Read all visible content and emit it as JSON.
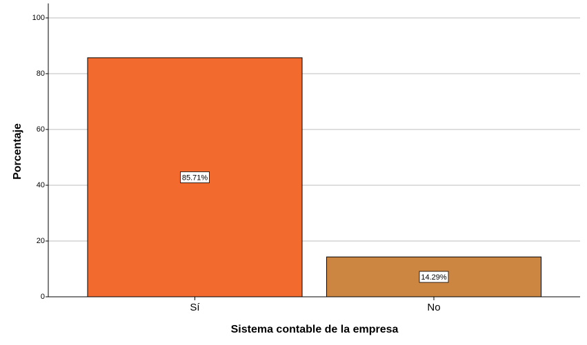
{
  "chart_data": {
    "type": "bar",
    "xlabel": "Sistema contable de la empresa",
    "ylabel": "Porcentaje",
    "categories": [
      "Sí",
      "No"
    ],
    "values": [
      85.71,
      14.29
    ],
    "value_labels": [
      "85.71%",
      "14.29%"
    ],
    "colors": [
      "#f26a2e",
      "#cd8641"
    ],
    "ylim": [
      0,
      100
    ],
    "yticks": [
      0,
      20,
      40,
      60,
      80,
      100
    ],
    "grid": true
  }
}
